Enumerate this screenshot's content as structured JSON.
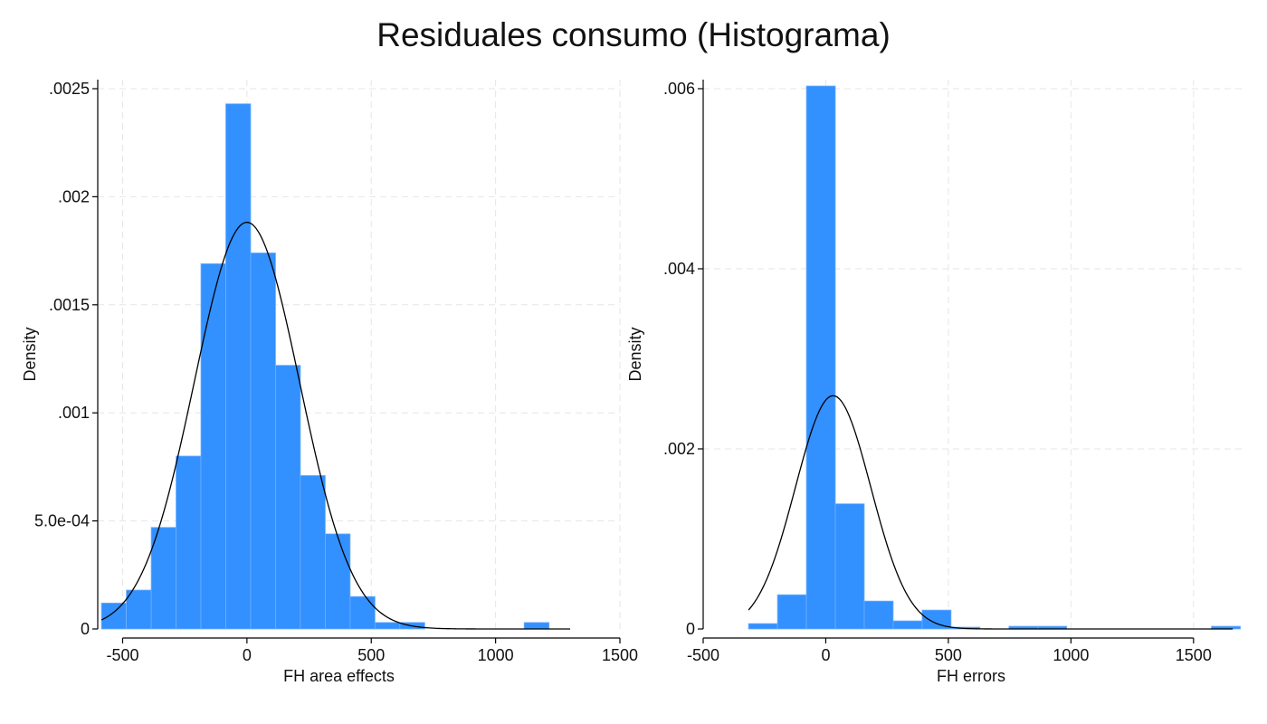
{
  "title": "Residuales consumo (Histograma)",
  "colors": {
    "bar": "#3390ff",
    "bar_edge": "#6fb0ff",
    "curve": "#000000",
    "grid": "#e6e6e6",
    "axis": "#000000"
  },
  "chart_data": [
    {
      "type": "bar",
      "xlabel": "FH area effects",
      "ylabel": "Density",
      "xlim": [
        -600,
        1500
      ],
      "ylim": [
        0,
        0.0025
      ],
      "xticks": [
        -500,
        0,
        500,
        1000,
        1500
      ],
      "xtick_labels": [
        "-500",
        "0",
        "500",
        "1000",
        "1500"
      ],
      "yticks": [
        0,
        0.0005,
        0.001,
        0.0015,
        0.002,
        0.0025
      ],
      "ytick_labels": [
        "0",
        "5.0e-04",
        ".001",
        ".0015",
        ".002",
        ".0025"
      ],
      "bin_start": -585,
      "bin_width": 100,
      "values": [
        0.00012,
        0.00018,
        0.00047,
        0.0008,
        0.00169,
        0.00243,
        0.00174,
        0.00122,
        0.00071,
        0.00044,
        0.00015,
        3e-05,
        3e-05,
        0.0,
        0.0,
        0.0,
        0.0,
        3e-05
      ],
      "normal": {
        "mean": 0,
        "sd": 212
      },
      "grid": true
    },
    {
      "type": "bar",
      "xlabel": "FH errors",
      "ylabel": "Density",
      "xlim": [
        -500,
        1700
      ],
      "ylim": [
        0,
        0.006
      ],
      "xticks": [
        -500,
        0,
        500,
        1000,
        1500
      ],
      "xtick_labels": [
        "-500",
        "0",
        "500",
        "1000",
        "1500"
      ],
      "yticks": [
        0,
        0.002,
        0.004,
        0.006
      ],
      "ytick_labels": [
        "0",
        ".002",
        ".004",
        ".006"
      ],
      "bin_start": -315,
      "bin_width": 118,
      "values": [
        6e-05,
        0.00038,
        0.00603,
        0.00139,
        0.00031,
        9e-05,
        0.00021,
        2e-05,
        0.0,
        3e-05,
        3e-05,
        0.0,
        0.0,
        0.0,
        0.0,
        0.0,
        3e-05
      ],
      "normal": {
        "mean": 30,
        "sd": 154
      },
      "grid": true
    }
  ]
}
